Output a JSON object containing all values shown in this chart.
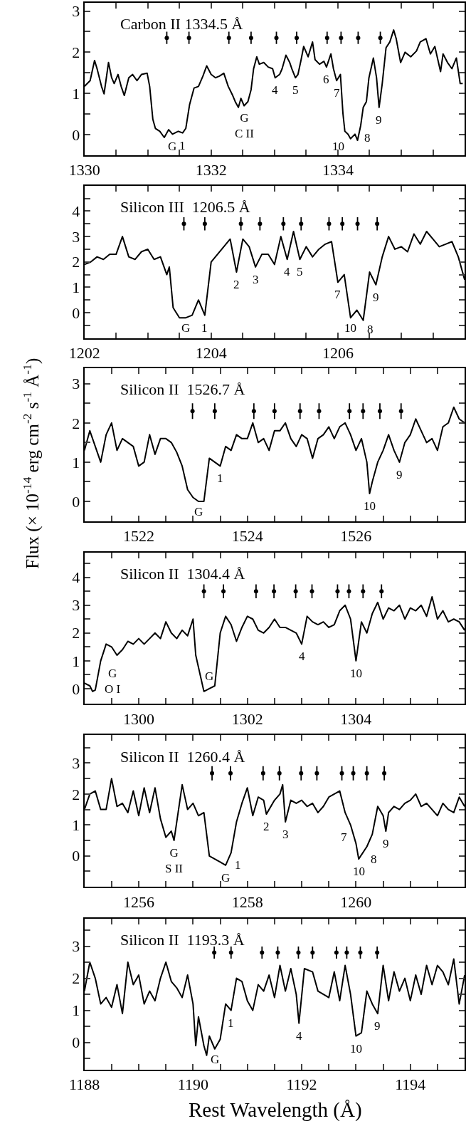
{
  "chart_data": [
    {
      "type": "line",
      "title": "Carbon II 1334.5 Å",
      "xlim": [
        1330,
        1336
      ],
      "ylim": [
        -0.5,
        3.2
      ],
      "xticks": [
        1330,
        {
          "value": 1330.5,
          "label": null
        },
        {
          "value": 1331,
          "label": null
        },
        {
          "value": 1331.5,
          "label": null
        },
        1332,
        {
          "value": 1332.5,
          "label": null
        },
        {
          "value": 1333,
          "label": null
        },
        {
          "value": 1333.5,
          "label": null
        },
        1334,
        {
          "value": 1334.5,
          "label": null
        },
        {
          "value": 1335,
          "label": null
        },
        {
          "value": 1335.5,
          "label": null
        },
        {
          "value": 1336,
          "label": null
        }
      ],
      "yticks": [
        {
          "value": -0.5,
          "label": null
        },
        0,
        {
          "value": 0.5,
          "label": null
        },
        1,
        {
          "value": 1.5,
          "label": null
        },
        2,
        {
          "value": 2.5,
          "label": null
        },
        3
      ],
      "series": [
        {
          "color": "#000000",
          "x": [
            1330.0,
            1330.09,
            1330.16,
            1330.2,
            1330.27,
            1330.31,
            1330.34,
            1330.38,
            1330.43,
            1330.47,
            1330.53,
            1330.58,
            1330.63,
            1330.7,
            1330.76,
            1330.83,
            1330.9,
            1330.99,
            1331.03,
            1331.08,
            1331.12,
            1331.19,
            1331.26,
            1331.33,
            1331.39,
            1331.48,
            1331.55,
            1331.6,
            1331.66,
            1331.73,
            1331.8,
            1331.87,
            1331.93,
            1332.0,
            1332.07,
            1332.13,
            1332.2,
            1332.27,
            1332.34,
            1332.38,
            1332.43,
            1332.47,
            1332.52,
            1332.58,
            1332.63,
            1332.67,
            1332.72,
            1332.76,
            1332.83,
            1332.9,
            1332.97,
            1333.01,
            1333.08,
            1333.12,
            1333.18,
            1333.24,
            1333.28,
            1333.33,
            1333.37,
            1333.42,
            1333.46,
            1333.53,
            1333.6,
            1333.64,
            1333.71,
            1333.78,
            1333.82,
            1333.89,
            1333.93,
            1333.98,
            1334.04,
            1334.08,
            1334.11,
            1334.16,
            1334.2,
            1334.27,
            1334.31,
            1334.36,
            1334.4,
            1334.45,
            1334.49,
            1334.56,
            1334.61,
            1334.65,
            1334.7,
            1334.76,
            1334.82,
            1334.88,
            1334.92,
            1334.99,
            1335.06,
            1335.15,
            1335.24,
            1335.3,
            1335.39,
            1335.46,
            1335.53,
            1335.62,
            1335.66,
            1335.73,
            1335.8,
            1335.87,
            1335.93,
            1335.97
          ],
          "values": [
            1.17,
            1.31,
            1.8,
            1.6,
            1.17,
            0.99,
            1.31,
            1.75,
            1.38,
            1.24,
            1.46,
            1.17,
            0.95,
            1.38,
            1.46,
            1.31,
            1.46,
            1.49,
            1.17,
            0.37,
            0.15,
            0.08,
            -0.07,
            0.12,
            0.01,
            0.08,
            0.04,
            0.15,
            0.73,
            1.13,
            1.17,
            1.42,
            1.67,
            1.46,
            1.38,
            1.42,
            1.49,
            1.17,
            0.95,
            0.8,
            0.66,
            0.88,
            0.7,
            0.8,
            1.09,
            1.6,
            1.89,
            1.71,
            1.75,
            1.64,
            1.6,
            1.38,
            1.46,
            1.6,
            1.93,
            1.75,
            1.57,
            1.38,
            1.46,
            1.82,
            2.14,
            1.89,
            2.25,
            1.82,
            1.71,
            1.78,
            1.64,
            1.96,
            1.6,
            1.31,
            1.46,
            0.51,
            0.08,
            0.01,
            -0.1,
            0.01,
            -0.14,
            0.22,
            0.66,
            0.8,
            1.38,
            1.86,
            1.38,
            0.66,
            1.24,
            2.11,
            2.25,
            2.54,
            2.33,
            1.75,
            2.0,
            1.89,
            2.03,
            2.25,
            2.33,
            1.96,
            2.14,
            1.53,
            1.96,
            1.75,
            1.6,
            1.86,
            1.24,
            1.24
          ]
        },
        {
          "type": "scatter",
          "marker": "none",
          "errors": [
            0.15,
            0.15,
            0.15,
            0.15,
            0.15,
            0.15,
            0.15,
            0.15,
            0.15,
            0.15
          ],
          "color": "#000000",
          "x": [
            1331.3,
            1331.65,
            1332.28,
            1332.63,
            1333.03,
            1333.35,
            1333.83,
            1334.05,
            1334.32,
            1334.67
          ],
          "values": [
            2.35,
            2.35,
            2.35,
            2.35,
            2.35,
            2.35,
            2.35,
            2.35,
            2.35,
            2.35
          ]
        }
      ],
      "annotations": [
        {
          "text": "G",
          "x": 1331.26,
          "y": -0.07
        },
        {
          "text": "1",
          "x": 1331.55,
          "y": 0.04
        },
        {
          "text": "G\nC II",
          "x": 1332.52,
          "y": 0.7
        },
        {
          "text": "4",
          "x": 1333.01,
          "y": 1.38
        },
        {
          "text": "5",
          "x": 1333.33,
          "y": 1.38
        },
        {
          "text": "6",
          "x": 1333.82,
          "y": 1.64
        },
        {
          "text": "7",
          "x": 1333.98,
          "y": 1.31
        },
        {
          "text": "10",
          "x": 1334.16,
          "y": 0.01
        },
        {
          "text": "8",
          "x": 1334.36,
          "y": 0.22
        },
        {
          "text": "9",
          "x": 1334.65,
          "y": 0.66
        }
      ]
    },
    {
      "type": "line",
      "title": "Silicon III  1206.5 Å",
      "xlim": [
        1202,
        1208
      ],
      "ylim": [
        -1,
        5
      ],
      "xticks": [
        1202,
        {
          "value": 1202.5,
          "label": null
        },
        {
          "value": 1203,
          "label": null
        },
        {
          "value": 1203.5,
          "label": null
        },
        1204,
        {
          "value": 1204.5,
          "label": null
        },
        {
          "value": 1205,
          "label": null
        },
        {
          "value": 1205.5,
          "label": null
        },
        1206,
        {
          "value": 1206.5,
          "label": null
        },
        {
          "value": 1207,
          "label": null
        },
        {
          "value": 1207.5,
          "label": null
        },
        {
          "value": 1208,
          "label": null
        }
      ],
      "yticks": [
        {
          "value": -0.5,
          "label": null
        },
        0,
        {
          "value": 0.5,
          "label": null
        },
        1,
        {
          "value": 1.5,
          "label": null
        },
        2,
        {
          "value": 2.5,
          "label": null
        },
        3,
        {
          "value": 3.5,
          "label": null
        },
        4,
        {
          "value": 4.5,
          "label": null
        }
      ],
      "series": [
        {
          "color": "#000000",
          "x": [
            1202.0,
            1202.1,
            1202.2,
            1202.3,
            1202.4,
            1202.5,
            1202.6,
            1202.7,
            1202.8,
            1202.9,
            1203.0,
            1203.1,
            1203.2,
            1203.3,
            1203.34,
            1203.4,
            1203.5,
            1203.6,
            1203.7,
            1203.8,
            1203.9,
            1204.0,
            1204.1,
            1204.2,
            1204.3,
            1204.4,
            1204.5,
            1204.6,
            1204.7,
            1204.8,
            1204.9,
            1205.0,
            1205.1,
            1205.2,
            1205.3,
            1205.4,
            1205.5,
            1205.6,
            1205.7,
            1205.8,
            1205.9,
            1206.0,
            1206.1,
            1206.2,
            1206.3,
            1206.4,
            1206.5,
            1206.6,
            1206.7,
            1206.8,
            1206.9,
            1207.0,
            1207.1,
            1207.2,
            1207.3,
            1207.4,
            1207.5,
            1207.6,
            1207.7,
            1207.8,
            1207.9,
            1208.0
          ],
          "values": [
            1.9,
            2.0,
            2.2,
            2.1,
            2.3,
            2.3,
            3.0,
            2.2,
            2.1,
            2.4,
            2.5,
            2.1,
            2.2,
            1.5,
            1.8,
            0.2,
            -0.2,
            -0.2,
            -0.1,
            0.5,
            -0.1,
            2.0,
            2.3,
            2.6,
            2.9,
            1.6,
            2.9,
            2.6,
            1.8,
            2.3,
            2.3,
            1.9,
            3.0,
            2.1,
            3.2,
            2.1,
            2.6,
            2.2,
            2.5,
            2.7,
            2.8,
            1.2,
            1.5,
            -0.2,
            0.1,
            -0.3,
            1.6,
            1.1,
            2.2,
            3.0,
            2.5,
            2.6,
            2.4,
            3.1,
            2.7,
            3.2,
            2.9,
            2.6,
            2.7,
            2.8,
            2.2,
            1.3
          ]
        },
        {
          "type": "scatter",
          "marker": "none",
          "errors": [
            0.26,
            0.26,
            0.26,
            0.26,
            0.26,
            0.26,
            0.26,
            0.26,
            0.26,
            0.26
          ],
          "color": "#000000",
          "x": [
            1203.57,
            1203.9,
            1204.47,
            1204.77,
            1205.14,
            1205.42,
            1205.86,
            1206.07,
            1206.31,
            1206.62
          ],
          "values": [
            3.5,
            3.5,
            3.5,
            3.5,
            3.5,
            3.5,
            3.5,
            3.5,
            3.5,
            3.5
          ]
        }
      ],
      "annotations": [
        {
          "text": "G",
          "x": 1203.6,
          "y": -0.2
        },
        {
          "text": "1",
          "x": 1203.9,
          "y": -0.1
        },
        {
          "text": "2",
          "x": 1204.4,
          "y": 1.6
        },
        {
          "text": "3",
          "x": 1204.7,
          "y": 1.8
        },
        {
          "text": "4",
          "x": 1205.2,
          "y": 2.1
        },
        {
          "text": "5",
          "x": 1205.4,
          "y": 2.1
        },
        {
          "text": "7",
          "x": 1206.0,
          "y": 1.2
        },
        {
          "text": "10",
          "x": 1206.2,
          "y": -0.2
        },
        {
          "text": "8",
          "x": 1206.4,
          "y": -0.3
        },
        {
          "text": "9",
          "x": 1206.6,
          "y": 1.1
        }
      ]
    },
    {
      "type": "line",
      "title": "Silicon II  1526.7 Å",
      "ylabel": "Flux (× 10$^{-14}$ erg cm$^{-2}$ s$^{-1}$ Å$^{-1}$)",
      "xlim": [
        1521,
        1528
      ],
      "ylim": [
        -0.5,
        3.4
      ],
      "xticks": [
        {
          "value": 1521.5,
          "label": null
        },
        1522,
        {
          "value": 1522.5,
          "label": null
        },
        {
          "value": 1523,
          "label": null
        },
        {
          "value": 1523.5,
          "label": null
        },
        1524,
        {
          "value": 1524.5,
          "label": null
        },
        {
          "value": 1525,
          "label": null
        },
        {
          "value": 1525.5,
          "label": null
        },
        1526,
        {
          "value": 1526.5,
          "label": null
        },
        {
          "value": 1527,
          "label": null
        },
        {
          "value": 1527.5,
          "label": null
        }
      ],
      "yticks": [
        0,
        {
          "value": 0.5,
          "label": null
        },
        1,
        {
          "value": 1.5,
          "label": null
        },
        2,
        {
          "value": 2.5,
          "label": null
        },
        3
      ],
      "series": [
        {
          "color": "#000000",
          "x": [
            1521.0,
            1521.1,
            1521.2,
            1521.3,
            1521.4,
            1521.5,
            1521.6,
            1521.7,
            1521.8,
            1521.9,
            1522.0,
            1522.1,
            1522.2,
            1522.3,
            1522.4,
            1522.5,
            1522.6,
            1522.7,
            1522.8,
            1522.9,
            1523.0,
            1523.1,
            1523.2,
            1523.3,
            1523.4,
            1523.5,
            1523.6,
            1523.7,
            1523.8,
            1523.9,
            1524.0,
            1524.1,
            1524.2,
            1524.3,
            1524.4,
            1524.5,
            1524.6,
            1524.7,
            1524.8,
            1524.9,
            1525.0,
            1525.1,
            1525.2,
            1525.3,
            1525.4,
            1525.5,
            1525.6,
            1525.7,
            1525.8,
            1525.9,
            1526.0,
            1526.1,
            1526.2,
            1526.25,
            1526.3,
            1526.4,
            1526.5,
            1526.6,
            1526.7,
            1526.8,
            1526.9,
            1527.0,
            1527.1,
            1527.2,
            1527.3,
            1527.4,
            1527.5,
            1527.6,
            1527.7,
            1527.8,
            1527.9,
            1528.0
          ],
          "values": [
            1.3,
            1.8,
            1.4,
            1.0,
            1.7,
            2.0,
            1.3,
            1.6,
            1.5,
            1.4,
            0.9,
            1.0,
            1.7,
            1.2,
            1.6,
            1.6,
            1.5,
            1.25,
            0.9,
            0.3,
            0.1,
            0.0,
            0.0,
            1.1,
            1.0,
            0.9,
            1.4,
            1.3,
            1.7,
            1.6,
            1.6,
            2.0,
            1.5,
            1.6,
            1.3,
            1.8,
            1.8,
            2.0,
            1.6,
            1.4,
            1.7,
            1.6,
            1.1,
            1.6,
            1.7,
            1.9,
            1.6,
            1.9,
            2.0,
            1.7,
            1.3,
            1.6,
            1.0,
            0.2,
            0.5,
            1.0,
            1.3,
            1.7,
            1.3,
            1.0,
            1.5,
            1.7,
            2.1,
            1.8,
            1.5,
            1.6,
            1.3,
            1.9,
            2.0,
            2.4,
            2.1,
            2.0
          ]
        },
        {
          "type": "scatter",
          "marker": "none",
          "errors": [
            0.2,
            0.2,
            0.2,
            0.2,
            0.2,
            0.2,
            0.2,
            0.2,
            0.2,
            0.2
          ],
          "color": "#000000",
          "x": [
            1522.99,
            1523.4,
            1524.12,
            1524.5,
            1524.97,
            1525.32,
            1525.88,
            1526.13,
            1526.44,
            1526.83
          ],
          "values": [
            2.3,
            2.3,
            2.3,
            2.3,
            2.3,
            2.3,
            2.3,
            2.3,
            2.3,
            2.3
          ]
        }
      ],
      "annotations": [
        {
          "text": "G",
          "x": 1523.1,
          "y": 0.0
        },
        {
          "text": "1",
          "x": 1523.5,
          "y": 0.9
        },
        {
          "text": "10",
          "x": 1526.25,
          "y": 0.2
        },
        {
          "text": "9",
          "x": 1526.8,
          "y": 1.0
        }
      ]
    },
    {
      "type": "line",
      "title": "Silicon II  1304.4 Å",
      "xlim": [
        1299,
        1306
      ],
      "ylim": [
        -0.55,
        4.9
      ],
      "xticks": [
        {
          "value": 1299.5,
          "label": null
        },
        1300,
        {
          "value": 1300.5,
          "label": null
        },
        {
          "value": 1301,
          "label": null
        },
        {
          "value": 1301.5,
          "label": null
        },
        1302,
        {
          "value": 1302.5,
          "label": null
        },
        {
          "value": 1303,
          "label": null
        },
        {
          "value": 1303.5,
          "label": null
        },
        1304,
        {
          "value": 1304.5,
          "label": null
        },
        {
          "value": 1305,
          "label": null
        },
        {
          "value": 1305.5,
          "label": null
        }
      ],
      "yticks": [
        0,
        {
          "value": 0.5,
          "label": null
        },
        1,
        {
          "value": 1.5,
          "label": null
        },
        2,
        {
          "value": 2.5,
          "label": null
        },
        3,
        {
          "value": 3.5,
          "label": null
        },
        4,
        {
          "value": 4.5,
          "label": null
        }
      ],
      "series": [
        {
          "color": "#000000",
          "x": [
            1299.0,
            1299.1,
            1299.15,
            1299.2,
            1299.3,
            1299.4,
            1299.5,
            1299.6,
            1299.7,
            1299.8,
            1299.9,
            1300.0,
            1300.1,
            1300.2,
            1300.3,
            1300.4,
            1300.5,
            1300.6,
            1300.7,
            1300.8,
            1300.9,
            1301.0,
            1301.05,
            1301.2,
            1301.3,
            1301.4,
            1301.5,
            1301.6,
            1301.7,
            1301.8,
            1301.9,
            1302.0,
            1302.1,
            1302.2,
            1302.3,
            1302.4,
            1302.5,
            1302.6,
            1302.7,
            1302.8,
            1302.9,
            1303.0,
            1303.1,
            1303.2,
            1303.3,
            1303.4,
            1303.5,
            1303.6,
            1303.7,
            1303.8,
            1303.9,
            1304.0,
            1304.1,
            1304.2,
            1304.3,
            1304.4,
            1304.5,
            1304.6,
            1304.7,
            1304.8,
            1304.9,
            1305.0,
            1305.1,
            1305.2,
            1305.3,
            1305.4,
            1305.5,
            1305.6,
            1305.7,
            1305.8,
            1305.9,
            1306.0
          ],
          "values": [
            0.2,
            0.1,
            -0.1,
            -0.05,
            1.0,
            1.6,
            1.5,
            1.2,
            1.4,
            1.7,
            1.6,
            1.8,
            1.6,
            1.8,
            2.0,
            1.8,
            2.4,
            2.0,
            1.8,
            2.1,
            1.9,
            2.5,
            1.2,
            -0.1,
            0.0,
            0.1,
            2.0,
            2.6,
            2.3,
            1.7,
            2.2,
            2.6,
            2.5,
            2.1,
            2.0,
            2.2,
            2.5,
            2.2,
            2.2,
            2.1,
            2.0,
            1.6,
            2.6,
            2.4,
            2.3,
            2.4,
            2.2,
            2.3,
            2.8,
            3.0,
            2.5,
            1.0,
            2.4,
            2.0,
            2.7,
            3.1,
            2.5,
            2.9,
            2.8,
            3.0,
            2.5,
            2.9,
            2.8,
            3.0,
            2.6,
            3.3,
            2.5,
            2.8,
            2.4,
            2.5,
            2.4,
            2.1
          ]
        },
        {
          "type": "scatter",
          "marker": "none",
          "errors": [
            0.25,
            0.25,
            0.25,
            0.25,
            0.25,
            0.25,
            0.25,
            0.25,
            0.25,
            0.25
          ],
          "color": "#000000",
          "x": [
            1301.2,
            1301.56,
            1302.16,
            1302.49,
            1302.89,
            1303.19,
            1303.66,
            1303.87,
            1304.13,
            1304.47
          ],
          "values": [
            3.5,
            3.5,
            3.5,
            3.5,
            3.5,
            3.5,
            3.5,
            3.5,
            3.5,
            3.5
          ]
        }
      ],
      "annotations": [
        {
          "text": "G\nO I",
          "x": 1299.3,
          "y": 1.0
        },
        {
          "text": "G",
          "x": 1301.3,
          "y": 0.0
        },
        {
          "text": "4",
          "x": 1303.0,
          "y": 1.6
        },
        {
          "text": "10",
          "x": 1304.0,
          "y": 1.0
        }
      ]
    },
    {
      "type": "line",
      "title": "Silicon II  1260.4 Å",
      "xlim": [
        1255,
        1262
      ],
      "ylim": [
        -1,
        3.9
      ],
      "xticks": [
        {
          "value": 1255.5,
          "label": null
        },
        1256,
        {
          "value": 1256.5,
          "label": null
        },
        {
          "value": 1257,
          "label": null
        },
        {
          "value": 1257.5,
          "label": null
        },
        1258,
        {
          "value": 1258.5,
          "label": null
        },
        {
          "value": 1259,
          "label": null
        },
        {
          "value": 1259.5,
          "label": null
        },
        1260,
        {
          "value": 1260.5,
          "label": null
        },
        {
          "value": 1261,
          "label": null
        },
        {
          "value": 1261.5,
          "label": null
        }
      ],
      "yticks": [
        {
          "value": -0.5,
          "label": null
        },
        0,
        {
          "value": 0.5,
          "label": null
        },
        1,
        {
          "value": 1.5,
          "label": null
        },
        2,
        {
          "value": 2.5,
          "label": null
        },
        3,
        {
          "value": 3.5,
          "label": null
        }
      ],
      "series": [
        {
          "color": "#000000",
          "x": [
            1255.0,
            1255.1,
            1255.2,
            1255.3,
            1255.4,
            1255.5,
            1255.6,
            1255.7,
            1255.8,
            1255.9,
            1256.0,
            1256.1,
            1256.2,
            1256.3,
            1256.4,
            1256.5,
            1256.6,
            1256.65,
            1256.8,
            1256.9,
            1257.0,
            1257.1,
            1257.2,
            1257.3,
            1257.4,
            1257.5,
            1257.6,
            1257.7,
            1257.8,
            1257.9,
            1258.0,
            1258.1,
            1258.2,
            1258.3,
            1258.35,
            1258.5,
            1258.6,
            1258.65,
            1258.7,
            1258.8,
            1258.9,
            1259.0,
            1259.1,
            1259.2,
            1259.3,
            1259.4,
            1259.5,
            1259.6,
            1259.7,
            1259.8,
            1259.9,
            1260.0,
            1260.05,
            1260.2,
            1260.3,
            1260.4,
            1260.5,
            1260.55,
            1260.6,
            1260.7,
            1260.8,
            1260.9,
            1261.0,
            1261.1,
            1261.2,
            1261.3,
            1261.4,
            1261.5,
            1261.6,
            1261.7,
            1261.8,
            1261.9,
            1262.0
          ],
          "values": [
            1.5,
            2.0,
            2.1,
            1.5,
            1.5,
            2.5,
            1.6,
            1.7,
            1.4,
            2.1,
            1.3,
            2.2,
            1.4,
            2.2,
            1.2,
            0.6,
            0.8,
            0.5,
            2.3,
            1.5,
            1.7,
            1.3,
            1.4,
            0.0,
            -0.1,
            -0.2,
            -0.3,
            0.1,
            1.1,
            1.7,
            2.2,
            1.3,
            1.9,
            1.8,
            1.35,
            1.8,
            2.0,
            2.3,
            1.1,
            1.8,
            1.7,
            1.8,
            1.6,
            1.7,
            1.4,
            1.6,
            1.9,
            2.0,
            2.1,
            1.4,
            1.0,
            0.4,
            -0.1,
            0.3,
            0.7,
            1.6,
            1.3,
            0.8,
            1.4,
            1.6,
            1.5,
            1.7,
            1.8,
            2.0,
            1.6,
            1.7,
            1.5,
            1.3,
            1.7,
            1.5,
            1.4,
            1.9,
            1.6
          ]
        },
        {
          "type": "scatter",
          "marker": "none",
          "errors": [
            0.23,
            0.23,
            0.23,
            0.23,
            0.23,
            0.23,
            0.23,
            0.23,
            0.23,
            0.23
          ],
          "color": "#000000",
          "x": [
            1257.35,
            1257.69,
            1258.29,
            1258.59,
            1258.99,
            1259.28,
            1259.74,
            1259.95,
            1260.2,
            1260.52
          ],
          "values": [
            2.67,
            2.67,
            2.67,
            2.67,
            2.67,
            2.67,
            2.67,
            2.67,
            2.67,
            2.67
          ]
        }
      ],
      "annotations": [
        {
          "text": "G\nS II",
          "x": 1256.65,
          "y": 0.5
        },
        {
          "text": "G",
          "x": 1257.6,
          "y": -0.3
        },
        {
          "text": "1",
          "x": 1257.7,
          "y": 0.1
        },
        {
          "text": "2",
          "x": 1258.35,
          "y": 1.35
        },
        {
          "text": "3",
          "x": 1258.7,
          "y": 1.1
        },
        {
          "text": "7",
          "x": 1259.9,
          "y": 1.0
        },
        {
          "text": "10",
          "x": 1260.05,
          "y": -0.1
        },
        {
          "text": "8",
          "x": 1260.2,
          "y": 0.3
        },
        {
          "text": "9",
          "x": 1260.55,
          "y": 0.8
        }
      ]
    },
    {
      "type": "line",
      "title": "Silicon II  1193.3 Å",
      "xlabel": "Rest Wavelength (Å)",
      "xlim": [
        1188,
        1195
      ],
      "ylim": [
        -0.85,
        3.85
      ],
      "xticks": [
        1188,
        {
          "value": 1188.5,
          "label": null
        },
        {
          "value": 1189,
          "label": null
        },
        {
          "value": 1189.5,
          "label": null
        },
        1190,
        {
          "value": 1190.5,
          "label": null
        },
        {
          "value": 1191,
          "label": null
        },
        {
          "value": 1191.5,
          "label": null
        },
        1192,
        {
          "value": 1192.5,
          "label": null
        },
        {
          "value": 1193,
          "label": null
        },
        {
          "value": 1193.5,
          "label": null
        },
        1194,
        {
          "value": 1194.5,
          "label": null
        }
      ],
      "yticks": [
        {
          "value": -0.5,
          "label": null
        },
        0,
        {
          "value": 0.5,
          "label": null
        },
        1,
        {
          "value": 1.5,
          "label": null
        },
        2,
        {
          "value": 2.5,
          "label": null
        },
        3,
        {
          "value": 3.5,
          "label": null
        }
      ],
      "series": [
        {
          "color": "#000000",
          "x": [
            1188.0,
            1188.1,
            1188.2,
            1188.3,
            1188.4,
            1188.5,
            1188.6,
            1188.7,
            1188.8,
            1188.9,
            1189.0,
            1189.1,
            1189.2,
            1189.3,
            1189.4,
            1189.5,
            1189.6,
            1189.7,
            1189.8,
            1189.9,
            1190.0,
            1190.05,
            1190.1,
            1190.2,
            1190.25,
            1190.3,
            1190.4,
            1190.5,
            1190.6,
            1190.7,
            1190.8,
            1190.9,
            1191.0,
            1191.1,
            1191.2,
            1191.3,
            1191.4,
            1191.5,
            1191.6,
            1191.7,
            1191.8,
            1191.9,
            1191.95,
            1192.05,
            1192.2,
            1192.3,
            1192.4,
            1192.5,
            1192.6,
            1192.7,
            1192.8,
            1192.9,
            1193.0,
            1193.1,
            1193.2,
            1193.3,
            1193.4,
            1193.5,
            1193.6,
            1193.7,
            1193.8,
            1193.9,
            1194.0,
            1194.1,
            1194.2,
            1194.3,
            1194.4,
            1194.5,
            1194.6,
            1194.7,
            1194.8,
            1194.9,
            1195.0
          ],
          "values": [
            1.6,
            2.5,
            2.0,
            1.2,
            1.4,
            1.1,
            1.8,
            0.9,
            2.5,
            1.8,
            2.1,
            1.2,
            1.6,
            1.3,
            2.0,
            2.5,
            1.9,
            1.7,
            1.4,
            2.1,
            1.2,
            -0.1,
            0.8,
            -0.1,
            -0.4,
            0.2,
            -0.2,
            0.1,
            1.2,
            1.0,
            2.0,
            1.9,
            1.3,
            1.0,
            1.8,
            1.6,
            2.1,
            1.4,
            2.4,
            1.6,
            2.3,
            1.5,
            0.6,
            2.3,
            2.2,
            1.6,
            1.5,
            1.4,
            2.2,
            1.3,
            2.4,
            1.5,
            0.2,
            0.3,
            1.6,
            1.2,
            0.9,
            2.4,
            1.3,
            2.2,
            1.6,
            2.0,
            1.3,
            2.1,
            1.5,
            2.4,
            1.8,
            2.4,
            2.2,
            1.8,
            2.6,
            1.2,
            2.1
          ]
        },
        {
          "type": "scatter",
          "marker": "none",
          "errors": [
            0.19,
            0.19,
            0.19,
            0.19,
            0.19,
            0.19,
            0.19,
            0.19,
            0.19,
            0.19
          ],
          "color": "#000000",
          "x": [
            1190.39,
            1190.7,
            1191.27,
            1191.56,
            1191.94,
            1192.2,
            1192.64,
            1192.83,
            1193.08,
            1193.39
          ],
          "values": [
            2.8,
            2.8,
            2.8,
            2.8,
            2.8,
            2.8,
            2.8,
            2.8,
            2.8,
            2.8
          ]
        }
      ],
      "annotations": [
        {
          "text": "G",
          "x": 1190.4,
          "y": -0.2
        },
        {
          "text": "1",
          "x": 1190.7,
          "y": 1.0
        },
        {
          "text": "4",
          "x": 1191.95,
          "y": 0.6
        },
        {
          "text": "10",
          "x": 1193.0,
          "y": 0.2
        },
        {
          "text": "9",
          "x": 1193.4,
          "y": 0.9
        }
      ]
    }
  ]
}
